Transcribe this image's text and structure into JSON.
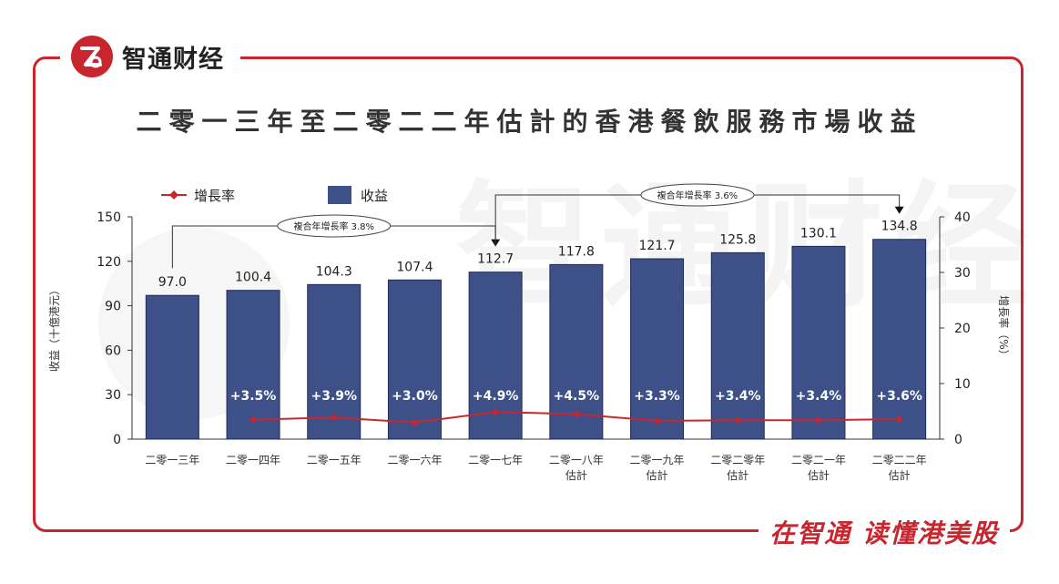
{
  "brand": {
    "name": "智通财经"
  },
  "slogan": "在智通  读懂港美股",
  "watermark": "智通财经",
  "chart_data": {
    "type": "bar",
    "title": "二零一三年至二零二二年估計的香港餐飲服務市場收益",
    "ylabel": "收益（十億港元）",
    "y2label": "增長率（%）",
    "ylim": [
      0,
      150
    ],
    "y2lim": [
      0,
      40
    ],
    "yticks": [
      0,
      30,
      60,
      90,
      120,
      150
    ],
    "y2ticks": [
      0,
      10,
      20,
      30,
      40
    ],
    "categories": [
      [
        "二零一三年"
      ],
      [
        "二零一四年"
      ],
      [
        "二零一五年"
      ],
      [
        "二零一六年"
      ],
      [
        "二零一七年"
      ],
      [
        "二零一八年",
        "估計"
      ],
      [
        "二零一九年",
        "估計"
      ],
      [
        "二零二零年",
        "估計"
      ],
      [
        "二零二一年",
        "估計"
      ],
      [
        "二零二二年",
        "估計"
      ]
    ],
    "series": [
      {
        "name": "收益",
        "type": "bar",
        "color": "#3d5088",
        "values": [
          97.0,
          100.4,
          104.3,
          107.4,
          112.7,
          117.8,
          121.7,
          125.8,
          130.1,
          134.8
        ],
        "labels": [
          "97.0",
          "100.4",
          "104.3",
          "107.4",
          "112.7",
          "117.8",
          "121.7",
          "125.8",
          "130.1",
          "134.8"
        ]
      },
      {
        "name": "增長率",
        "type": "line",
        "color": "#c8262f",
        "values": [
          null,
          3.5,
          3.9,
          3.0,
          4.9,
          4.5,
          3.3,
          3.4,
          3.4,
          3.6
        ],
        "labels": [
          "",
          "+3.5%",
          "+3.9%",
          "+3.0%",
          "+4.9%",
          "+4.5%",
          "+3.3%",
          "+3.4%",
          "+3.4%",
          "+3.6%"
        ]
      }
    ],
    "legend": {
      "position": "top-left"
    },
    "annotations": [
      {
        "text": "複合年增長率 3.8%",
        "from": 0,
        "to": 4
      },
      {
        "text": "複合年增長率 3.6%",
        "from": 4,
        "to": 9
      }
    ]
  }
}
